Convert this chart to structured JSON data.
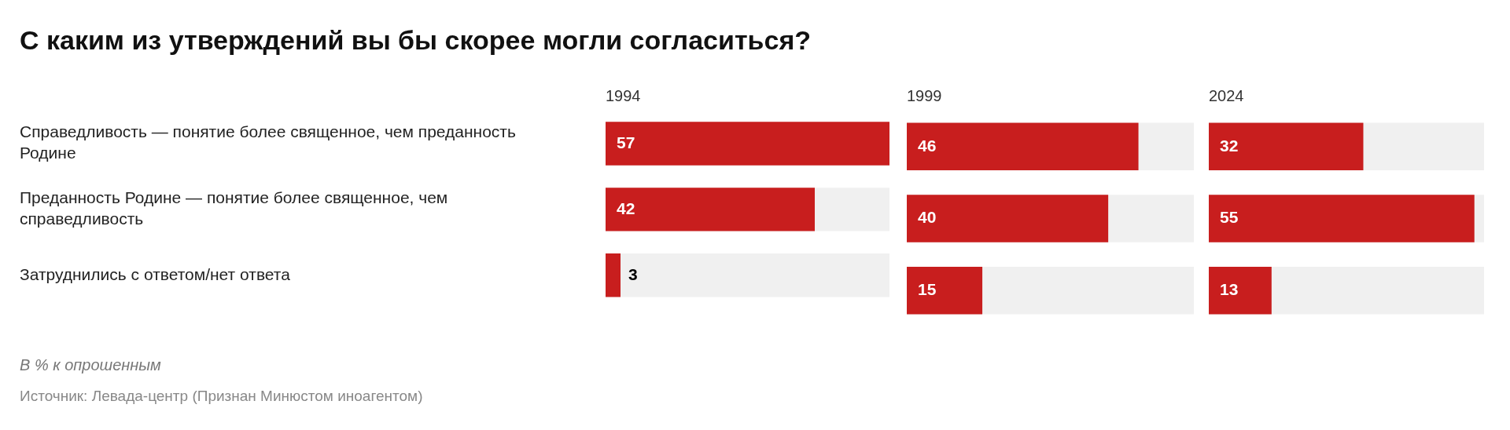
{
  "chart_data": [
    {
      "type": "other",
      "title": "С каким из утверждений вы бы скорее могли согласиться?",
      "annotations": [
        "В % к опрошенным",
        "Источник: Левада-центр (Признан Минюстом иноагентом)"
      ]
    },
    {
      "type": "bar",
      "orientation": "horizontal",
      "title": "1994",
      "categories": [
        "Справедливость — понятие более священное, чем преданность Родине",
        "Преданность Родине — понятие более священное, чем справедливость",
        "Затруднились с ответом/нет ответа"
      ],
      "values": [
        57,
        42,
        3
      ],
      "color": "#c81e1e",
      "xlim": [
        0,
        57
      ],
      "data_labels": true,
      "tick_labels": "y"
    },
    {
      "type": "bar",
      "orientation": "horizontal",
      "title": "1999",
      "categories": [
        null,
        null,
        null
      ],
      "values": [
        46,
        40,
        15
      ],
      "color": "#c81e1e",
      "xlim": [
        0,
        57
      ],
      "data_labels": true,
      "tick_labels": false
    },
    {
      "type": "bar",
      "orientation": "horizontal",
      "title": "2024",
      "categories": [
        null,
        null,
        null
      ],
      "values": [
        32,
        55,
        13
      ],
      "color": "#c81e1e",
      "xlim": [
        0,
        57
      ],
      "data_labels": true,
      "tick_labels": false
    }
  ]
}
